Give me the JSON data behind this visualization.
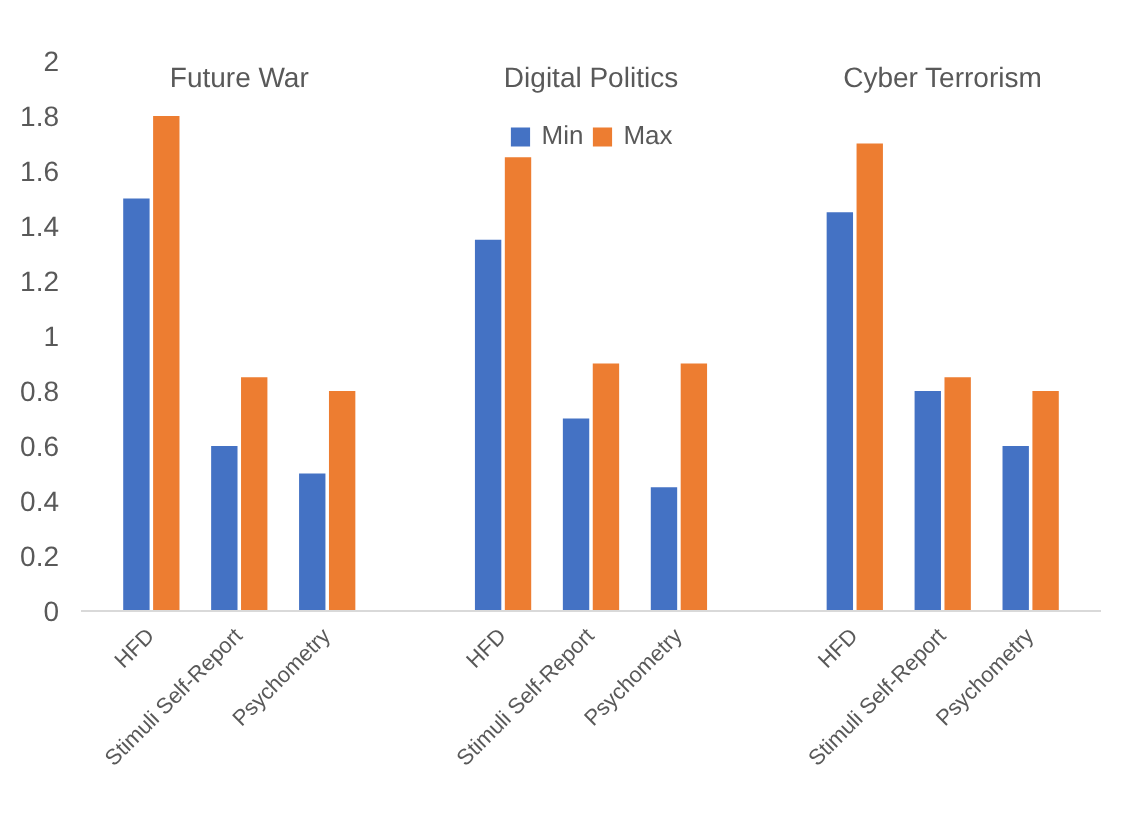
{
  "chart_data": {
    "type": "bar",
    "categories": [
      "HFD",
      "Stimuli Self-Report",
      "Psychometry",
      "HFD",
      "Stimuli Self-Report",
      "Psychometry",
      "HFD",
      "Stimuli Self-Report",
      "Psychometry"
    ],
    "series": [
      {
        "name": "Min",
        "color": "#4472c4",
        "values": [
          1.5,
          0.6,
          0.5,
          1.35,
          0.7,
          0.45,
          1.45,
          0.8,
          0.6
        ]
      },
      {
        "name": "Max",
        "color": "#ed7d31",
        "values": [
          1.8,
          0.85,
          0.8,
          1.65,
          0.9,
          0.9,
          1.7,
          0.85,
          0.8
        ]
      }
    ],
    "annotations": [
      "Future War",
      "Digital Politics",
      "Cyber Terrorism"
    ],
    "ylim": [
      0,
      2
    ],
    "yticks": [
      0,
      0.2,
      0.4,
      0.6,
      0.8,
      1,
      1.2,
      1.4,
      1.6,
      1.8,
      2
    ],
    "grid": false,
    "legend": "top"
  }
}
